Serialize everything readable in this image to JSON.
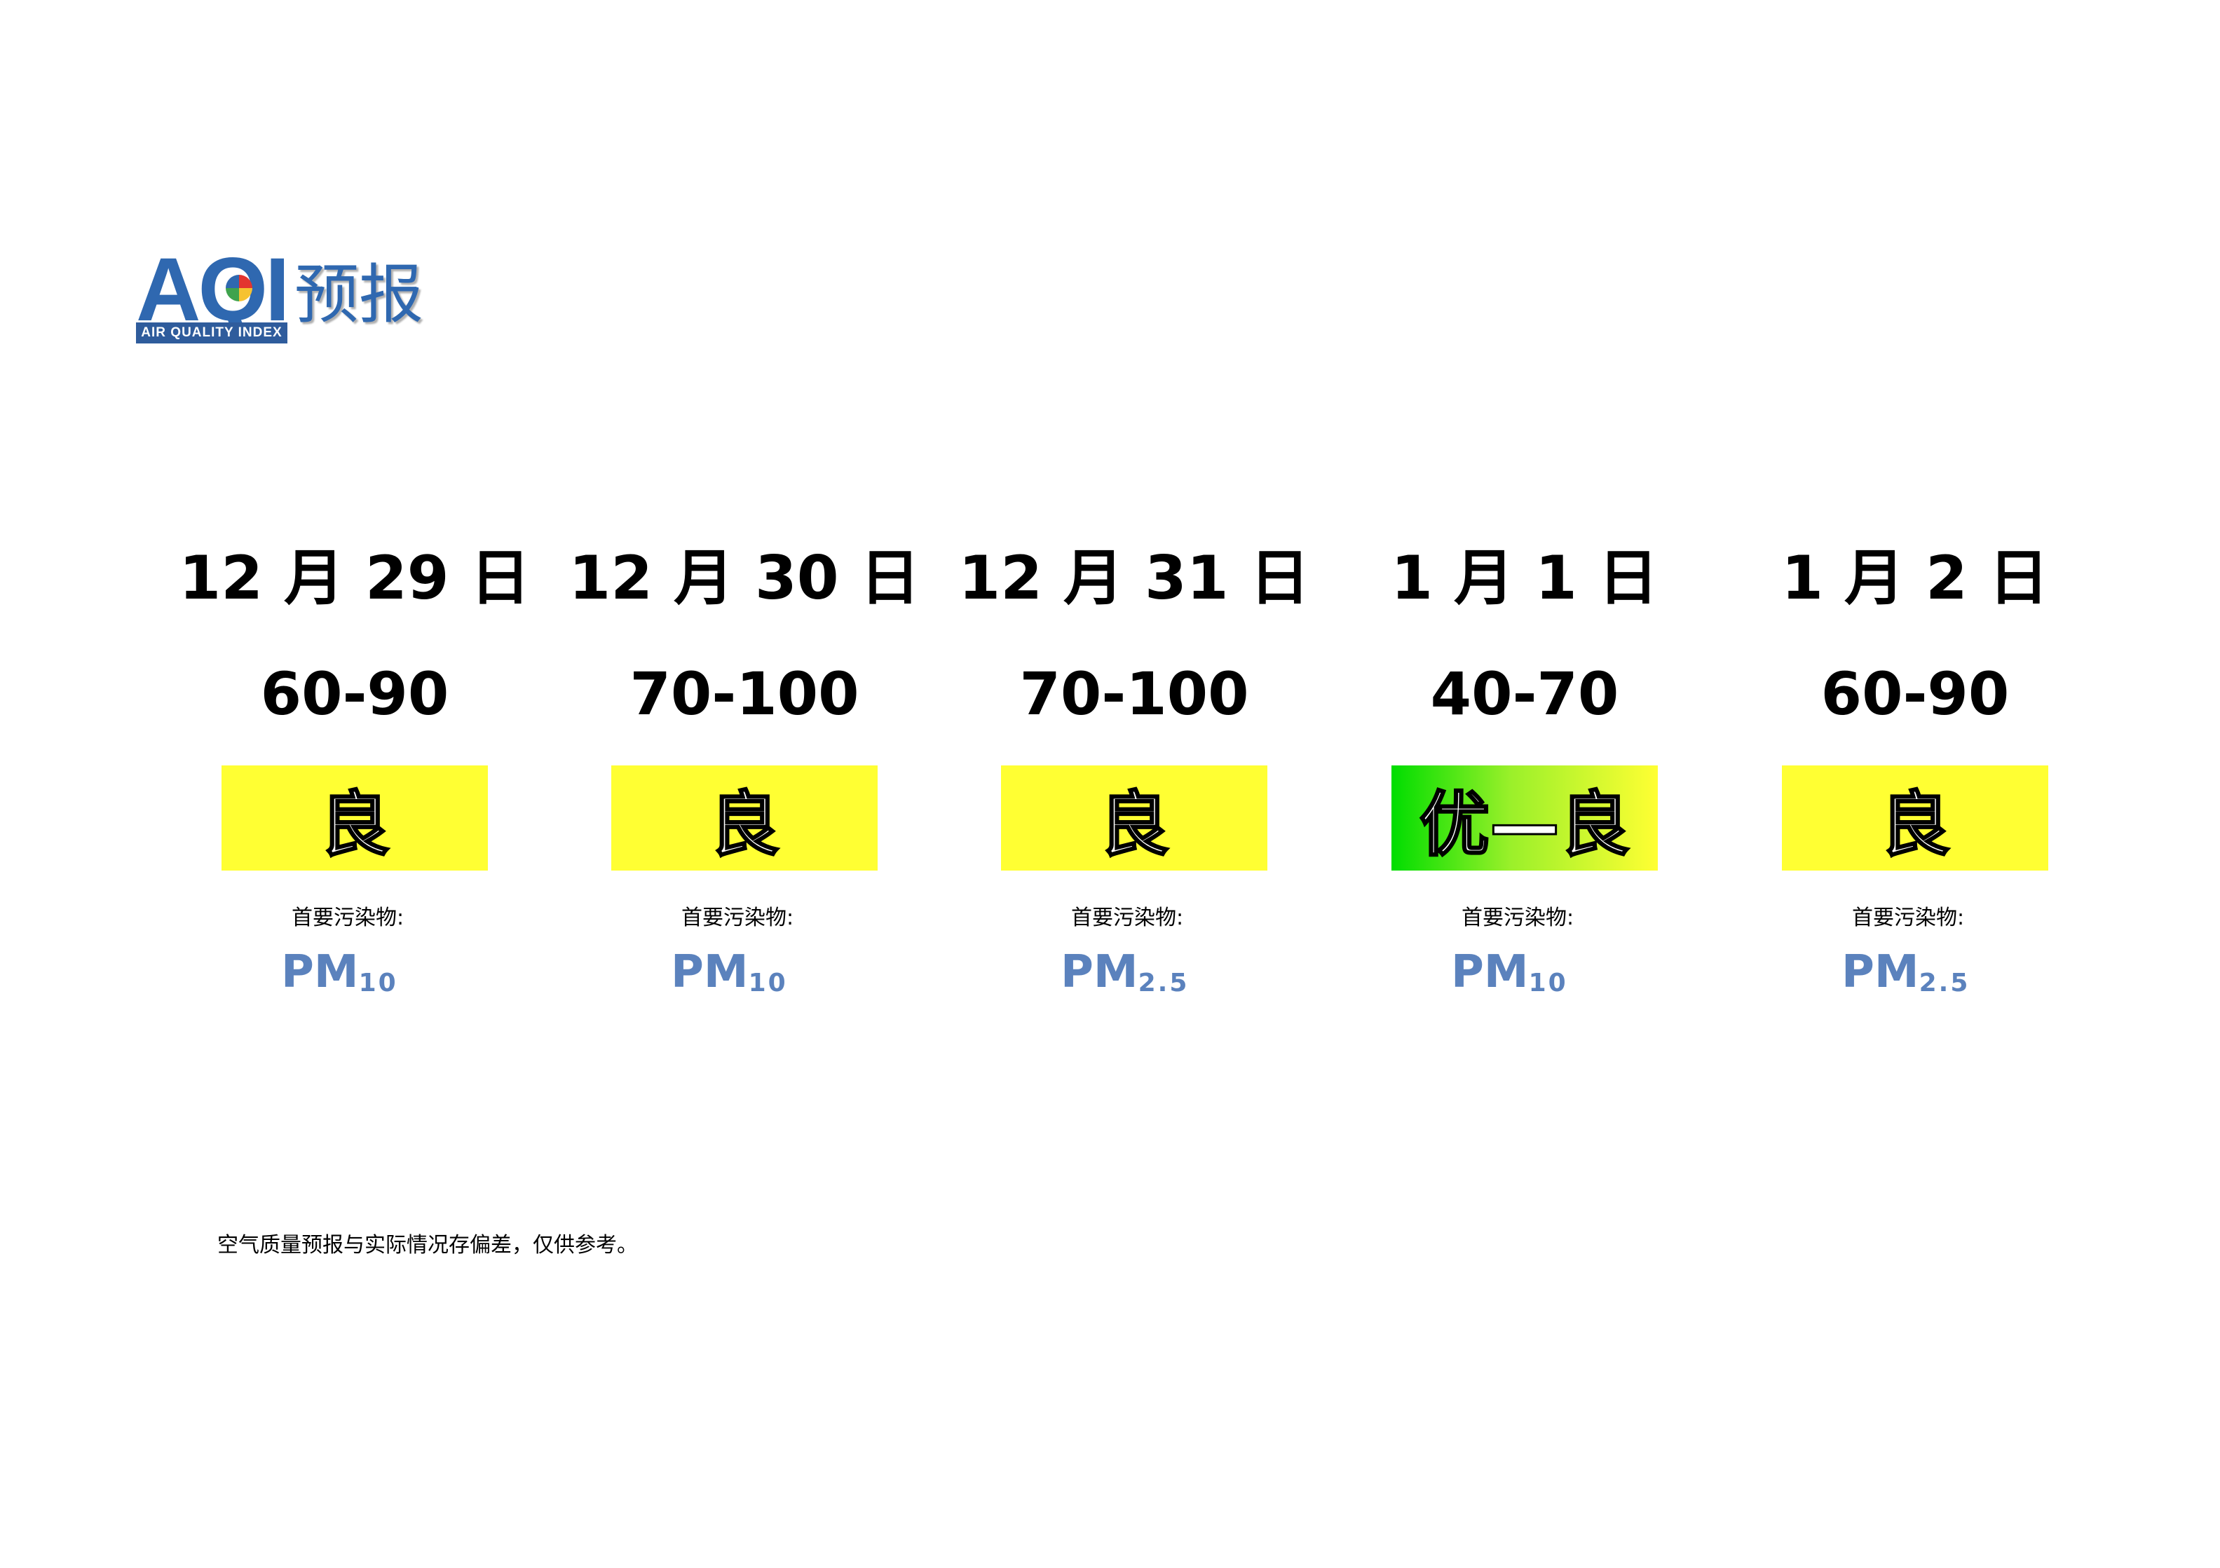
{
  "logo": {
    "letters": "AQI",
    "tagline": "AIR QUALITY INDEX",
    "title": "预报",
    "color": "#2f68b0"
  },
  "days": [
    {
      "date": "12 月 29 日",
      "range": "60-90",
      "level": "良",
      "pollutant_label": "首要污染物:",
      "pollutant": "PM",
      "pollutant_sub": "10",
      "color": "#ffff33"
    },
    {
      "date": "12 月 30 日",
      "range": "70-100",
      "level": "良",
      "pollutant_label": "首要污染物:",
      "pollutant": "PM",
      "pollutant_sub": "10",
      "color": "#ffff33"
    },
    {
      "date": "12 月 31 日",
      "range": "70-100",
      "level": "良",
      "pollutant_label": "首要污染物:",
      "pollutant": "PM",
      "pollutant_sub": "2.5",
      "color": "#ffff33"
    },
    {
      "date": "1 月 1 日",
      "range": "40-70",
      "level": "优—良",
      "pollutant_label": "首要污染物:",
      "pollutant": "PM",
      "pollutant_sub": "10",
      "color": "gradient:#00dd00-#ffff33"
    },
    {
      "date": "1 月 2 日",
      "range": "60-90",
      "level": "良",
      "pollutant_label": "首要污染物:",
      "pollutant": "PM",
      "pollutant_sub": "2.5",
      "color": "#ffff33"
    }
  ],
  "footer": "空气质量预报与实际情况存偏差，仅供参考。"
}
